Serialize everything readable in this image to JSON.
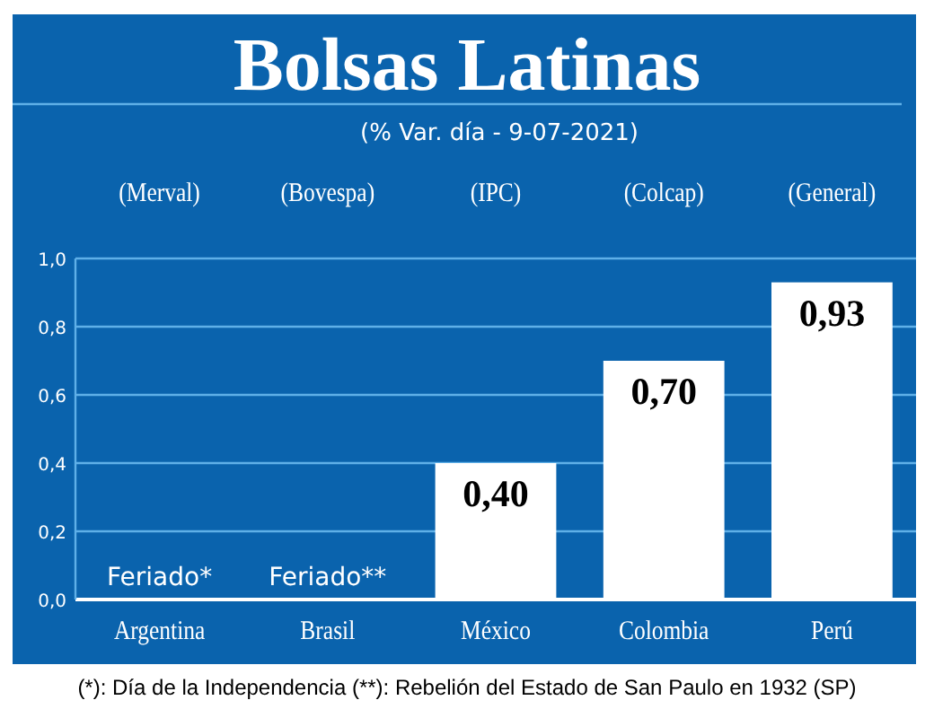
{
  "chart_data": {
    "type": "bar",
    "title": "Bolsas Latinas",
    "subtitle": "(% Var. día - 9-07-2021)",
    "categories": [
      "Argentina",
      "Brasil",
      "México",
      "Colombia",
      "Perú"
    ],
    "values": [
      null,
      null,
      0.4,
      0.7,
      0.93
    ],
    "value_labels": [
      "Feriado*",
      "Feriado**",
      "0,40",
      "0,70",
      "0,93"
    ],
    "color": "#ffffff",
    "ylim": [
      0,
      1
    ],
    "yticks": [
      {
        "value": 0,
        "label": "0,0"
      },
      {
        "value": 0.2,
        "label": "0,2"
      },
      {
        "value": 0.4,
        "label": "0,4"
      },
      {
        "value": 0.6,
        "label": "0,6"
      },
      {
        "value": 0.8,
        "label": "0,8"
      },
      {
        "value": 1,
        "label": "1,0"
      }
    ],
    "grid": "y",
    "annotations": [
      "(Merval)",
      "(Bovespa)",
      "(IPC)",
      "(Colcap)",
      "(General)",
      "(*): Día de la Independencia (**): Rebelión del Estado de San Paulo en 1932 (SP)"
    ]
  }
}
